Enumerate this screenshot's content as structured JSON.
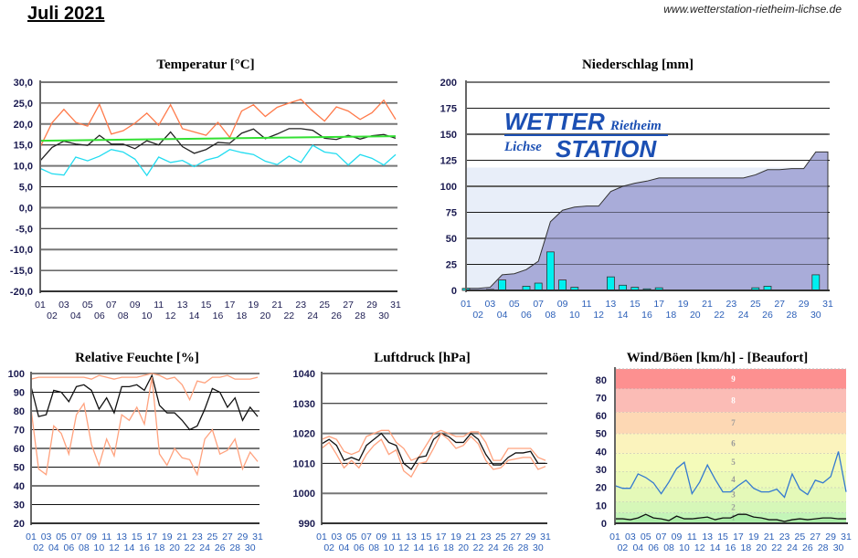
{
  "header": {
    "title": "Juli 2021",
    "url": "www.wetterstation-rietheim-lichse.de"
  },
  "logo": {
    "line1_big": "WETTER",
    "line1_small": "Rietheim",
    "line2_small": "Lichse",
    "line2_big": "STATION"
  },
  "chart_data": [
    {
      "type": "line",
      "title": "Temperatur [°C]",
      "ylim": [
        -20,
        30
      ],
      "yticks": [
        30,
        25,
        20,
        15,
        10,
        5,
        0,
        -5,
        -10,
        -15,
        -20
      ],
      "ytick_labels": [
        "30,0",
        "25,0",
        "20,0",
        "15,0",
        "10,0",
        "5,0",
        "0,0",
        "-5,0",
        "-10,0",
        "-15,0",
        "-20,0"
      ],
      "xtick_labels": [
        "01",
        "02",
        "03",
        "04",
        "05",
        "06",
        "07",
        "08",
        "09",
        "10",
        "11",
        "12",
        "13",
        "14",
        "15",
        "16",
        "17",
        "18",
        "19",
        "20",
        "21",
        "22",
        "23",
        "24",
        "25",
        "26",
        "27",
        "28",
        "29",
        "30",
        "31"
      ],
      "series": {
        "max": {
          "color": "#ff7a4a",
          "values": [
            14.5,
            20.3,
            23.5,
            20.4,
            19.5,
            24.7,
            17.6,
            18.4,
            20.2,
            22.6,
            19.7,
            24.6,
            18.9,
            18.1,
            17.3,
            20.4,
            16.8,
            23.1,
            24.6,
            21.8,
            24.0,
            25.0,
            25.9,
            23.1,
            20.7,
            24.1,
            23.1,
            21.1,
            22.7,
            25.7,
            21.1
          ]
        },
        "mean": {
          "color": "#222222",
          "values": [
            11.2,
            14.4,
            15.9,
            15.2,
            14.9,
            17.3,
            15.2,
            15.2,
            14.1,
            16.0,
            15.0,
            18.1,
            14.6,
            13.0,
            13.9,
            15.6,
            15.4,
            17.8,
            18.8,
            16.5,
            17.6,
            18.9,
            18.9,
            18.5,
            16.6,
            16.3,
            17.3,
            16.4,
            17.2,
            17.5,
            16.6
          ]
        },
        "min": {
          "color": "#22dcf0",
          "values": [
            9.4,
            8.1,
            7.8,
            12.1,
            11.2,
            12.3,
            13.9,
            13.3,
            11.6,
            7.7,
            12.1,
            10.8,
            11.3,
            9.8,
            11.4,
            12.1,
            13.9,
            13.2,
            12.7,
            11.1,
            10.3,
            12.3,
            10.8,
            14.9,
            13.3,
            12.9,
            10.2,
            12.7,
            11.8,
            10.2,
            12.7
          ]
        },
        "trend": {
          "color": "#33e033",
          "values": [
            16.0,
            17.1
          ]
        }
      }
    },
    {
      "type": "bar",
      "title": "Niederschlag [mm]",
      "ylim": [
        0,
        200
      ],
      "yticks": [
        200,
        175,
        150,
        125,
        100,
        75,
        50,
        25,
        0
      ],
      "ytick_labels": [
        "200",
        "175",
        "150",
        "125",
        "100",
        "75",
        "50",
        "25",
        "0"
      ],
      "xtick_labels": [
        "01",
        "02",
        "03",
        "04",
        "05",
        "06",
        "07",
        "08",
        "09",
        "10",
        "11",
        "12",
        "13",
        "14",
        "15",
        "16",
        "17",
        "18",
        "19",
        "20",
        "21",
        "22",
        "23",
        "24",
        "25",
        "26",
        "27",
        "28",
        "29",
        "30",
        "31"
      ],
      "reference_level": 118,
      "daily": {
        "color": "#00f0f0",
        "values": [
          2,
          0,
          1,
          10,
          0,
          4,
          7,
          37,
          10,
          3,
          0.5,
          0,
          13,
          5,
          3,
          1.5,
          2.5,
          0,
          0,
          0,
          0,
          0,
          0,
          0,
          2.5,
          4,
          0,
          0.5,
          0,
          15,
          0
        ]
      },
      "cumulative": {
        "color": "#a3a6d6",
        "values": [
          2,
          2,
          3,
          15,
          16,
          20,
          28,
          66,
          77,
          80,
          81,
          81,
          95,
          100,
          103,
          105,
          108,
          108,
          108,
          108,
          108,
          108,
          108,
          108,
          111,
          116,
          116,
          117,
          117,
          133,
          133
        ]
      }
    },
    {
      "type": "line",
      "title": "Relative Feuchte [%]",
      "ylim": [
        20,
        100
      ],
      "yticks": [
        100,
        90,
        80,
        70,
        60,
        50,
        40,
        30,
        20
      ],
      "ytick_labels": [
        "100",
        "90",
        "80",
        "70",
        "60",
        "50",
        "40",
        "30",
        "20"
      ],
      "xtick_labels": [
        "01",
        "02",
        "03",
        "04",
        "05",
        "06",
        "07",
        "08",
        "09",
        "10",
        "11",
        "12",
        "13",
        "14",
        "15",
        "16",
        "17",
        "18",
        "19",
        "20",
        "21",
        "22",
        "23",
        "24",
        "25",
        "26",
        "27",
        "28",
        "29",
        "30",
        "31"
      ],
      "series": {
        "max": {
          "color": "#ffa27e",
          "values": [
            97,
            98,
            98,
            98,
            98,
            98,
            98,
            98,
            97,
            99,
            98,
            97,
            98,
            98,
            98,
            99,
            100,
            99,
            97,
            98,
            94,
            86,
            96,
            95,
            98,
            98,
            99,
            97,
            97,
            97,
            98
          ]
        },
        "mean": {
          "color": "#111111",
          "values": [
            93,
            77,
            78,
            91,
            90,
            85,
            93,
            94,
            91,
            81,
            87,
            79,
            93,
            93,
            94,
            91,
            99,
            83,
            79,
            79,
            75,
            70,
            72,
            81,
            92,
            90,
            82,
            87,
            75,
            82,
            77
          ]
        },
        "min": {
          "color": "#ffa27e",
          "values": [
            81,
            49,
            46,
            72,
            68,
            57,
            78,
            84,
            62,
            51,
            65,
            56,
            78,
            75,
            82,
            73,
            98,
            57,
            51,
            60,
            55,
            54,
            46,
            65,
            70,
            57,
            59,
            65,
            49,
            58,
            53
          ]
        }
      }
    },
    {
      "type": "line",
      "title": "Luftdruck [hPa]",
      "ylim": [
        990,
        1040
      ],
      "yticks": [
        1040,
        1030,
        1020,
        1010,
        1000,
        990
      ],
      "ytick_labels": [
        "1040",
        "1030",
        "1020",
        "1010",
        "1000",
        "990"
      ],
      "xtick_labels": [
        "01",
        "02",
        "03",
        "04",
        "05",
        "06",
        "07",
        "08",
        "09",
        "10",
        "11",
        "12",
        "13",
        "14",
        "15",
        "16",
        "17",
        "18",
        "19",
        "20",
        "21",
        "22",
        "23",
        "24",
        "25",
        "26",
        "27",
        "28",
        "29",
        "30",
        "31"
      ],
      "series": {
        "max": {
          "color": "#ffa27e",
          "values": [
            1018,
            1019,
            1018,
            1014,
            1013,
            1014,
            1019,
            1020,
            1021,
            1021,
            1017,
            1015,
            1011,
            1012,
            1016,
            1020,
            1021,
            1020,
            1019,
            1019,
            1020.5,
            1020.5,
            1017,
            1011,
            1011,
            1015,
            1015,
            1015,
            1015,
            1012,
            1011
          ]
        },
        "mean": {
          "color": "#111111",
          "values": [
            1016.5,
            1018,
            1016,
            1011,
            1012,
            1011,
            1016,
            1018,
            1020,
            1017,
            1016,
            1010,
            1008,
            1012,
            1012.5,
            1018,
            1020,
            1019,
            1017,
            1017,
            1020,
            1018,
            1013,
            1009.5,
            1009.5,
            1012,
            1013.5,
            1013.5,
            1014,
            1010,
            1010
          ]
        },
        "min": {
          "color": "#ffa27e",
          "values": [
            1015,
            1017,
            1013,
            1008.5,
            1011,
            1008.5,
            1013,
            1016,
            1018,
            1013,
            1014.5,
            1007.5,
            1005.5,
            1010,
            1010.5,
            1015,
            1020,
            1018,
            1015,
            1016,
            1019,
            1016.5,
            1011,
            1008,
            1008.5,
            1011,
            1011.5,
            1012,
            1012,
            1008,
            1009
          ]
        }
      }
    },
    {
      "type": "line",
      "title": "Wind/Böen [km/h] - [Beaufort]",
      "ylim": [
        0,
        86
      ],
      "yticks": [
        80,
        70,
        60,
        50,
        40,
        30,
        20,
        10,
        0
      ],
      "ytick_labels": [
        "80",
        "70",
        "60",
        "50",
        "40",
        "30",
        "20",
        "10",
        "0"
      ],
      "xtick_labels": [
        "01",
        "02",
        "03",
        "04",
        "05",
        "06",
        "07",
        "08",
        "09",
        "10",
        "11",
        "12",
        "13",
        "14",
        "15",
        "16",
        "17",
        "18",
        "19",
        "20",
        "21",
        "22",
        "23",
        "24",
        "25",
        "26",
        "27",
        "28",
        "29",
        "30",
        "31"
      ],
      "beaufort": [
        {
          "label": "1",
          "from": 0,
          "to": 6,
          "color": "#c4f5b8"
        },
        {
          "label": "2",
          "from": 6,
          "to": 12,
          "color": "#d6f7b8"
        },
        {
          "label": "3",
          "from": 12,
          "to": 20,
          "color": "#e4f9b8"
        },
        {
          "label": "4",
          "from": 20,
          "to": 29,
          "color": "#ecfab8"
        },
        {
          "label": "5",
          "from": 29,
          "to": 39,
          "color": "#f4fbba"
        },
        {
          "label": "6",
          "from": 39,
          "to": 50,
          "color": "#fbf3bd"
        },
        {
          "label": "7",
          "from": 50,
          "to": 62,
          "color": "#fdd8b4"
        },
        {
          "label": "8",
          "from": 62,
          "to": 75,
          "color": "#fbbcb6"
        },
        {
          "label": "9",
          "from": 75,
          "to": 86,
          "color": "#fd9090"
        }
      ],
      "series": {
        "gust": {
          "color": "#3479d0",
          "values": [
            21,
            19.5,
            19.5,
            27.5,
            25.5,
            22.5,
            16.5,
            23,
            30.5,
            34,
            16.5,
            23,
            32.5,
            24.5,
            17.5,
            17.5,
            21,
            24,
            19.5,
            17.5,
            17.5,
            19,
            14.5,
            27.5,
            19,
            16,
            24,
            22.5,
            26,
            40,
            17.5
          ]
        },
        "mean": {
          "color": "#111111",
          "values": [
            2.5,
            2.5,
            2,
            3,
            5,
            3,
            2.5,
            1.5,
            4,
            2.5,
            2.5,
            3,
            3.5,
            2,
            3,
            3,
            5,
            5,
            3.5,
            3,
            2,
            2,
            1,
            2,
            2.5,
            2,
            2.5,
            3,
            3,
            2.5,
            2.5
          ]
        }
      }
    }
  ]
}
